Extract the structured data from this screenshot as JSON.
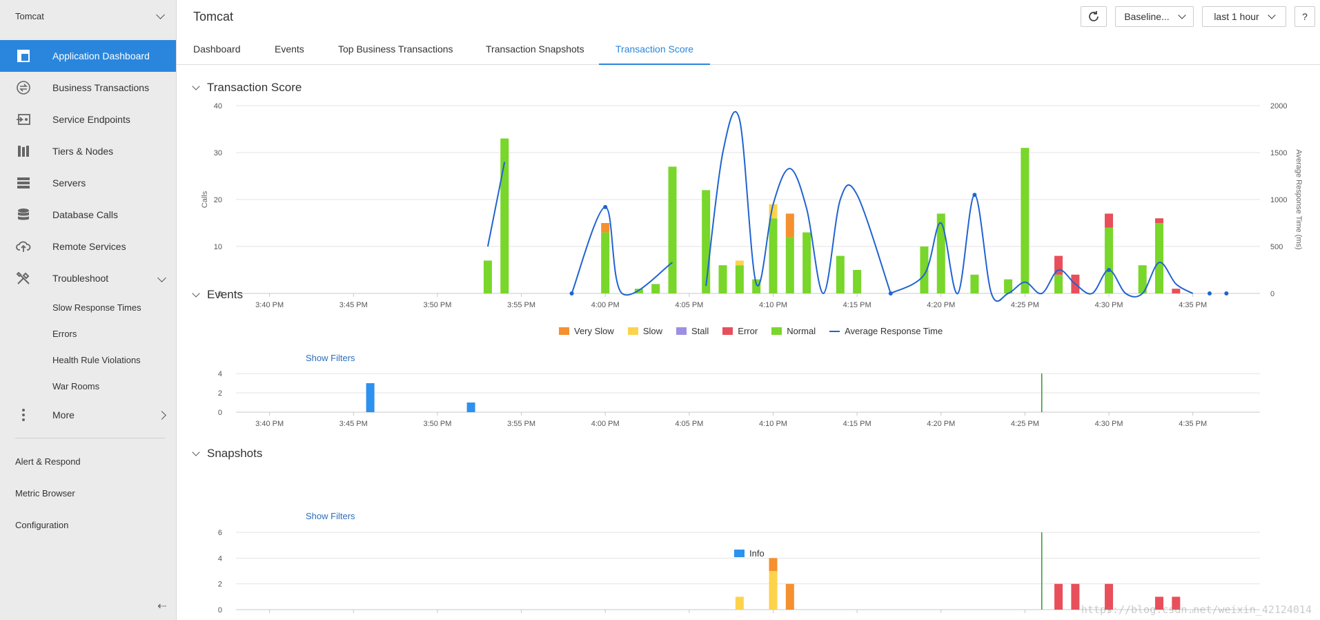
{
  "sidebar": {
    "app_name": "Tomcat",
    "items": [
      {
        "label": "Application Dashboard",
        "icon": "dashboard-icon",
        "active": true
      },
      {
        "label": "Business Transactions",
        "icon": "transactions-icon"
      },
      {
        "label": "Service Endpoints",
        "icon": "endpoint-icon"
      },
      {
        "label": "Tiers & Nodes",
        "icon": "tiers-icon"
      },
      {
        "label": "Servers",
        "icon": "server-icon"
      },
      {
        "label": "Database Calls",
        "icon": "database-icon"
      },
      {
        "label": "Remote Services",
        "icon": "cloud-upload-icon"
      },
      {
        "label": "Troubleshoot",
        "icon": "tools-icon"
      }
    ],
    "troubleshoot_children": [
      "Slow Response Times",
      "Errors",
      "Health Rule Violations",
      "War Rooms"
    ],
    "more_label": "More",
    "links": [
      "Alert & Respond",
      "Metric Browser",
      "Configuration"
    ],
    "collapse_glyph": "⇠"
  },
  "header": {
    "title": "Tomcat",
    "baseline_label": "Baseline...",
    "time_range_label": "last 1 hour",
    "help_label": "?"
  },
  "tabs": [
    "Dashboard",
    "Events",
    "Top Business Transactions",
    "Transaction Snapshots",
    "Transaction Score"
  ],
  "active_tab": "Transaction Score",
  "colors": {
    "very_slow": "#f5902f",
    "slow": "#fdd34c",
    "stall": "#9d90e2",
    "error": "#e84f5b",
    "normal": "#79d62a",
    "avg_response": "#1f63d1",
    "info": "#2d91f0",
    "marker": "#2a9d2a",
    "accent": "#2a86dc"
  },
  "sections": {
    "transaction_score_title": "Transaction Score",
    "events_title": "Events",
    "snapshots_title": "Snapshots",
    "show_filters": "Show Filters"
  },
  "watermark": "https://blog.csdn.net/weixin_42124014",
  "chart_data": [
    {
      "type": "bar",
      "title": "Transaction Score",
      "ylabel": "Calls",
      "y2label": "Average Response Time (ms)",
      "ylim": [
        0,
        40
      ],
      "y2lim": [
        0,
        2000
      ],
      "yticks": [
        0,
        10,
        20,
        30,
        40
      ],
      "y2ticks": [
        0,
        500,
        1000,
        1500,
        2000
      ],
      "x_ticks": [
        "3:40 PM",
        "3:45 PM",
        "3:50 PM",
        "3:55 PM",
        "4:00 PM",
        "4:05 PM",
        "4:10 PM",
        "4:15 PM",
        "4:20 PM",
        "4:25 PM",
        "4:30 PM",
        "4:35 PM"
      ],
      "x_range_minutes": [
        38,
        99
      ],
      "grid": true,
      "legend": [
        "Very Slow",
        "Slow",
        "Stall",
        "Error",
        "Normal",
        "Average Response Time"
      ],
      "legend_position": "bottom",
      "bars": [
        {
          "t": 53,
          "normal": 7
        },
        {
          "t": 54,
          "normal": 33
        },
        {
          "t": 60,
          "normal": 13,
          "very_slow": 2
        },
        {
          "t": 62,
          "normal": 1
        },
        {
          "t": 63,
          "normal": 2
        },
        {
          "t": 64,
          "normal": 27
        },
        {
          "t": 66,
          "normal": 22
        },
        {
          "t": 67,
          "normal": 6
        },
        {
          "t": 68,
          "normal": 6,
          "slow": 1
        },
        {
          "t": 69,
          "normal": 3
        },
        {
          "t": 70,
          "normal": 16,
          "slow": 3
        },
        {
          "t": 71,
          "normal": 12,
          "very_slow": 5
        },
        {
          "t": 72,
          "normal": 13
        },
        {
          "t": 74,
          "normal": 8
        },
        {
          "t": 75,
          "normal": 5
        },
        {
          "t": 79,
          "normal": 10
        },
        {
          "t": 80,
          "normal": 17
        },
        {
          "t": 82,
          "normal": 4
        },
        {
          "t": 84,
          "normal": 3
        },
        {
          "t": 85,
          "normal": 31
        },
        {
          "t": 87,
          "normal": 4,
          "error": 4
        },
        {
          "t": 88,
          "error": 4
        },
        {
          "t": 90,
          "normal": 14,
          "error": 3
        },
        {
          "t": 92,
          "normal": 6
        },
        {
          "t": 93,
          "normal": 15,
          "error": 1
        },
        {
          "t": 94,
          "error": 1
        }
      ],
      "avg_response_segments": [
        [
          [
            53,
            500
          ],
          [
            54,
            1400
          ]
        ],
        [
          [
            58,
            0
          ],
          [
            60,
            920
          ],
          [
            61,
            0
          ],
          [
            64,
            330
          ]
        ],
        [
          [
            66,
            80
          ],
          [
            67,
            1500
          ],
          [
            68,
            1850
          ],
          [
            69,
            100
          ],
          [
            70,
            950
          ],
          [
            71,
            1330
          ],
          [
            72,
            900
          ],
          [
            73,
            0
          ],
          [
            74,
            1000
          ],
          [
            75,
            1050
          ],
          [
            77,
            0
          ]
        ],
        [
          [
            77,
            0
          ],
          [
            79,
            200
          ],
          [
            80,
            750
          ],
          [
            81,
            0
          ],
          [
            82,
            1050
          ],
          [
            83,
            0
          ],
          [
            84,
            0
          ],
          [
            85,
            120
          ],
          [
            86,
            0
          ],
          [
            87,
            250
          ],
          [
            88,
            100
          ],
          [
            89,
            0
          ],
          [
            90,
            250
          ],
          [
            91,
            0
          ],
          [
            92,
            0
          ],
          [
            93,
            330
          ],
          [
            94,
            100
          ],
          [
            95,
            0
          ]
        ]
      ],
      "avg_response_points": [
        [
          58,
          0
        ],
        [
          60,
          920
        ],
        [
          77,
          0
        ],
        [
          82,
          1050
        ],
        [
          90,
          250
        ],
        [
          96,
          0
        ],
        [
          97,
          0
        ]
      ]
    },
    {
      "type": "bar",
      "title": "Events",
      "ylim": [
        0,
        4
      ],
      "yticks": [
        0,
        2,
        4
      ],
      "x_ticks": [
        "3:40 PM",
        "3:45 PM",
        "3:50 PM",
        "3:55 PM",
        "4:00 PM",
        "4:05 PM",
        "4:10 PM",
        "4:15 PM",
        "4:20 PM",
        "4:25 PM",
        "4:30 PM",
        "4:35 PM"
      ],
      "legend": [
        "Info"
      ],
      "legend_position": "bottom",
      "bars": [
        {
          "t": 46,
          "info": 3
        },
        {
          "t": 52,
          "info": 1
        }
      ],
      "marker_t": 86
    },
    {
      "type": "bar",
      "title": "Snapshots",
      "ylim": [
        0,
        6
      ],
      "yticks": [
        0,
        2,
        4,
        6
      ],
      "bars": [
        {
          "t": 68,
          "slow": 1
        },
        {
          "t": 70,
          "slow": 3,
          "very_slow": 1
        },
        {
          "t": 71,
          "very_slow": 2
        },
        {
          "t": 87,
          "error": 2
        },
        {
          "t": 88,
          "error": 2
        },
        {
          "t": 90,
          "error": 2
        },
        {
          "t": 93,
          "error": 1
        },
        {
          "t": 94,
          "error": 1
        }
      ],
      "marker_t": 86
    }
  ]
}
